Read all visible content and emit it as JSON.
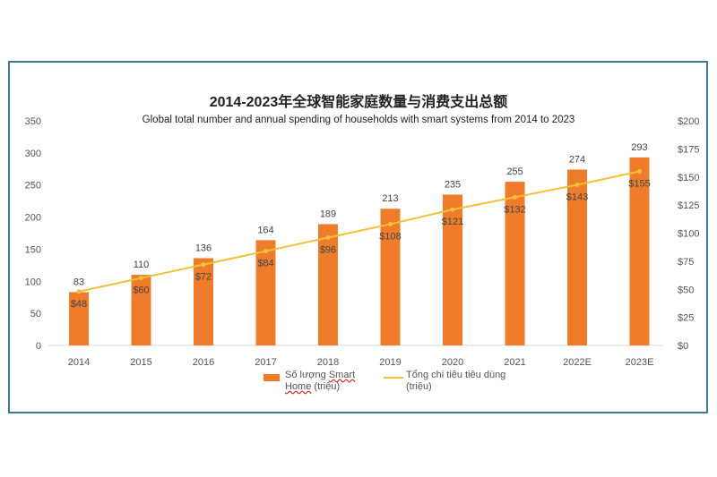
{
  "chart_data": {
    "type": "bar+line",
    "title": "2014-2023年全球智能家庭数量与消费支出总额",
    "subtitle": "Global total number and  annual spending of households with smart systems from 2014 to 2023",
    "categories": [
      "2014",
      "2015",
      "2016",
      "2017",
      "2018",
      "2019",
      "2020",
      "2021",
      "2022E",
      "2023E"
    ],
    "series": [
      {
        "name": "Số lượng Smart Home (triệu)",
        "type": "bar",
        "axis": "left",
        "color": "#ee7c2b",
        "values": [
          83,
          110,
          136,
          164,
          189,
          213,
          235,
          255,
          274,
          293
        ],
        "labels": [
          "83",
          "110",
          "136",
          "164",
          "189",
          "213",
          "235",
          "255",
          "274",
          "293"
        ]
      },
      {
        "name": "Tổng chi tiêu tiêu dùng (triệu)",
        "type": "line",
        "axis": "right",
        "color": "#f3c037",
        "values": [
          48,
          60,
          72,
          84,
          96,
          108,
          121,
          132,
          143,
          155
        ],
        "labels": [
          "$48",
          "$60",
          "$72",
          "$84",
          "$96",
          "$108",
          "$121",
          "$132",
          "$143",
          "$155"
        ]
      }
    ],
    "y_left": {
      "range": [
        0,
        350
      ],
      "ticks": [
        "0",
        "50",
        "100",
        "150",
        "200",
        "250",
        "300",
        "350"
      ]
    },
    "y_right": {
      "range": [
        0,
        200
      ],
      "ticks": [
        "$0",
        "$25",
        "$50",
        "$75",
        "$100",
        "$125",
        "$150",
        "$175",
        "$200"
      ]
    },
    "grid": false,
    "legend_position": "bottom",
    "legend": {
      "bar_label_a": "Số lượng ",
      "bar_label_b": "Smart",
      "bar_label_c": "Home",
      "bar_label_d": " (triệu)",
      "line_label_a": "Tổng chi tiêu tiêu dùng",
      "line_label_b": "(triệu)"
    }
  },
  "frame_color": "#3d7d90"
}
